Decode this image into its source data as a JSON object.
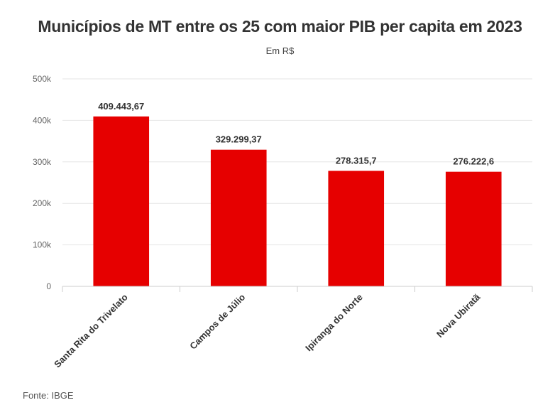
{
  "chart_data": {
    "type": "bar",
    "title": "Municípios de MT entre os 25 com maior PIB per capita em 2023",
    "subtitle": "Em R$",
    "source": "Fonte: IBGE",
    "categories": [
      "Santa Rita do Trivelato",
      "Campos de Júlio",
      "Ipiranga do Norte",
      "Nova Ubiratã"
    ],
    "values": [
      409443.67,
      329299.37,
      278315.7,
      276222.6
    ],
    "data_labels": [
      "409.443,67",
      "329.299,37",
      "278.315,7",
      "276.222,6"
    ],
    "y_ticks": [
      0,
      100000,
      200000,
      300000,
      400000,
      500000
    ],
    "y_tick_labels": [
      "0",
      "100k",
      "200k",
      "300k",
      "400k",
      "500k"
    ],
    "ylim": [
      0,
      500000
    ],
    "grid": true,
    "legend": "none",
    "colors": {
      "bar": "#e60000",
      "grid": "#e6e6e6",
      "axis": "#cccccc"
    }
  }
}
